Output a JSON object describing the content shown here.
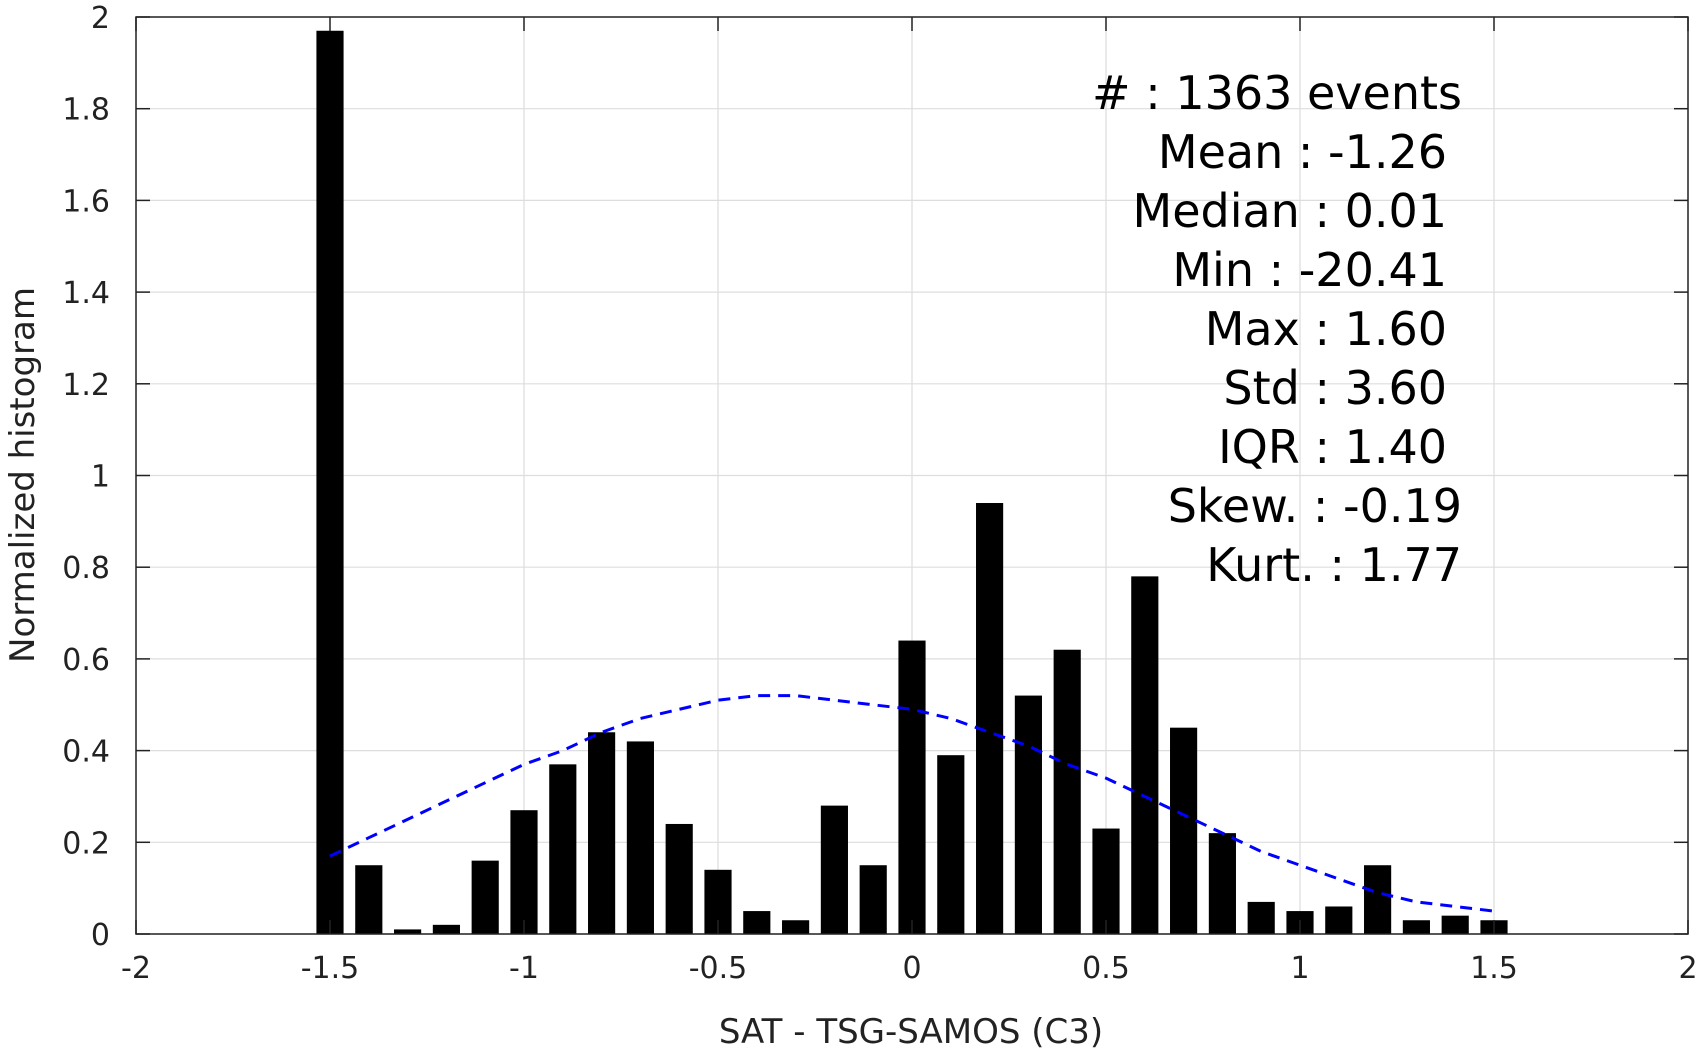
{
  "chart_data": {
    "type": "bar",
    "xlabel": "SAT - TSG-SAMOS (C3)",
    "ylabel": "Normalized histogram",
    "xlim": [
      -2,
      2
    ],
    "ylim": [
      0,
      2
    ],
    "xticks": [
      "-2",
      "-1.5",
      "-1",
      "-0.5",
      "0",
      "0.5",
      "1",
      "1.5",
      "2"
    ],
    "yticks": [
      "0",
      "0.2",
      "0.4",
      "0.6",
      "0.8",
      "1",
      "1.2",
      "1.4",
      "1.6",
      "1.8",
      "2"
    ],
    "grid": true,
    "bar_width": 0.07,
    "bars": [
      {
        "x": -1.5,
        "y": 1.97
      },
      {
        "x": -1.4,
        "y": 0.15
      },
      {
        "x": -1.3,
        "y": 0.01
      },
      {
        "x": -1.2,
        "y": 0.02
      },
      {
        "x": -1.1,
        "y": 0.16
      },
      {
        "x": -1.0,
        "y": 0.27
      },
      {
        "x": -0.9,
        "y": 0.37
      },
      {
        "x": -0.8,
        "y": 0.44
      },
      {
        "x": -0.7,
        "y": 0.42
      },
      {
        "x": -0.6,
        "y": 0.24
      },
      {
        "x": -0.5,
        "y": 0.14
      },
      {
        "x": -0.4,
        "y": 0.05
      },
      {
        "x": -0.3,
        "y": 0.03
      },
      {
        "x": -0.2,
        "y": 0.28
      },
      {
        "x": -0.1,
        "y": 0.15
      },
      {
        "x": 0.0,
        "y": 0.64
      },
      {
        "x": 0.1,
        "y": 0.39
      },
      {
        "x": 0.2,
        "y": 0.94
      },
      {
        "x": 0.3,
        "y": 0.52
      },
      {
        "x": 0.4,
        "y": 0.62
      },
      {
        "x": 0.5,
        "y": 0.23
      },
      {
        "x": 0.6,
        "y": 0.78
      },
      {
        "x": 0.7,
        "y": 0.45
      },
      {
        "x": 0.8,
        "y": 0.22
      },
      {
        "x": 0.9,
        "y": 0.07
      },
      {
        "x": 1.0,
        "y": 0.05
      },
      {
        "x": 1.1,
        "y": 0.06
      },
      {
        "x": 1.2,
        "y": 0.15
      },
      {
        "x": 1.3,
        "y": 0.03
      },
      {
        "x": 1.4,
        "y": 0.04
      },
      {
        "x": 1.5,
        "y": 0.03
      }
    ],
    "fit_curve": {
      "style": "dashed",
      "color": "#0000ff",
      "points": [
        [
          -1.5,
          0.17
        ],
        [
          -1.4,
          0.21
        ],
        [
          -1.3,
          0.25
        ],
        [
          -1.2,
          0.29
        ],
        [
          -1.1,
          0.33
        ],
        [
          -1.0,
          0.37
        ],
        [
          -0.9,
          0.4
        ],
        [
          -0.8,
          0.44
        ],
        [
          -0.7,
          0.47
        ],
        [
          -0.6,
          0.49
        ],
        [
          -0.5,
          0.51
        ],
        [
          -0.4,
          0.52
        ],
        [
          -0.3,
          0.52
        ],
        [
          -0.2,
          0.51
        ],
        [
          -0.1,
          0.5
        ],
        [
          0.0,
          0.49
        ],
        [
          0.1,
          0.47
        ],
        [
          0.2,
          0.44
        ],
        [
          0.3,
          0.41
        ],
        [
          0.4,
          0.37
        ],
        [
          0.5,
          0.34
        ],
        [
          0.6,
          0.3
        ],
        [
          0.7,
          0.26
        ],
        [
          0.8,
          0.22
        ],
        [
          0.9,
          0.18
        ],
        [
          1.0,
          0.15
        ],
        [
          1.1,
          0.12
        ],
        [
          1.2,
          0.09
        ],
        [
          1.3,
          0.07
        ],
        [
          1.4,
          0.06
        ],
        [
          1.5,
          0.05
        ]
      ]
    },
    "annotations": [
      "#  : 1363 events",
      "Mean : -1.26",
      "Median : 0.01",
      "Min : -20.41",
      "Max : 1.60",
      "Std : 3.60",
      "IQR : 1.40",
      "Skew. : -0.19",
      "Kurt. : 1.77"
    ],
    "colors": {
      "bars": "#000000",
      "grid": "#dddddd",
      "axis": "#222222",
      "curve": "#0000ff"
    }
  }
}
